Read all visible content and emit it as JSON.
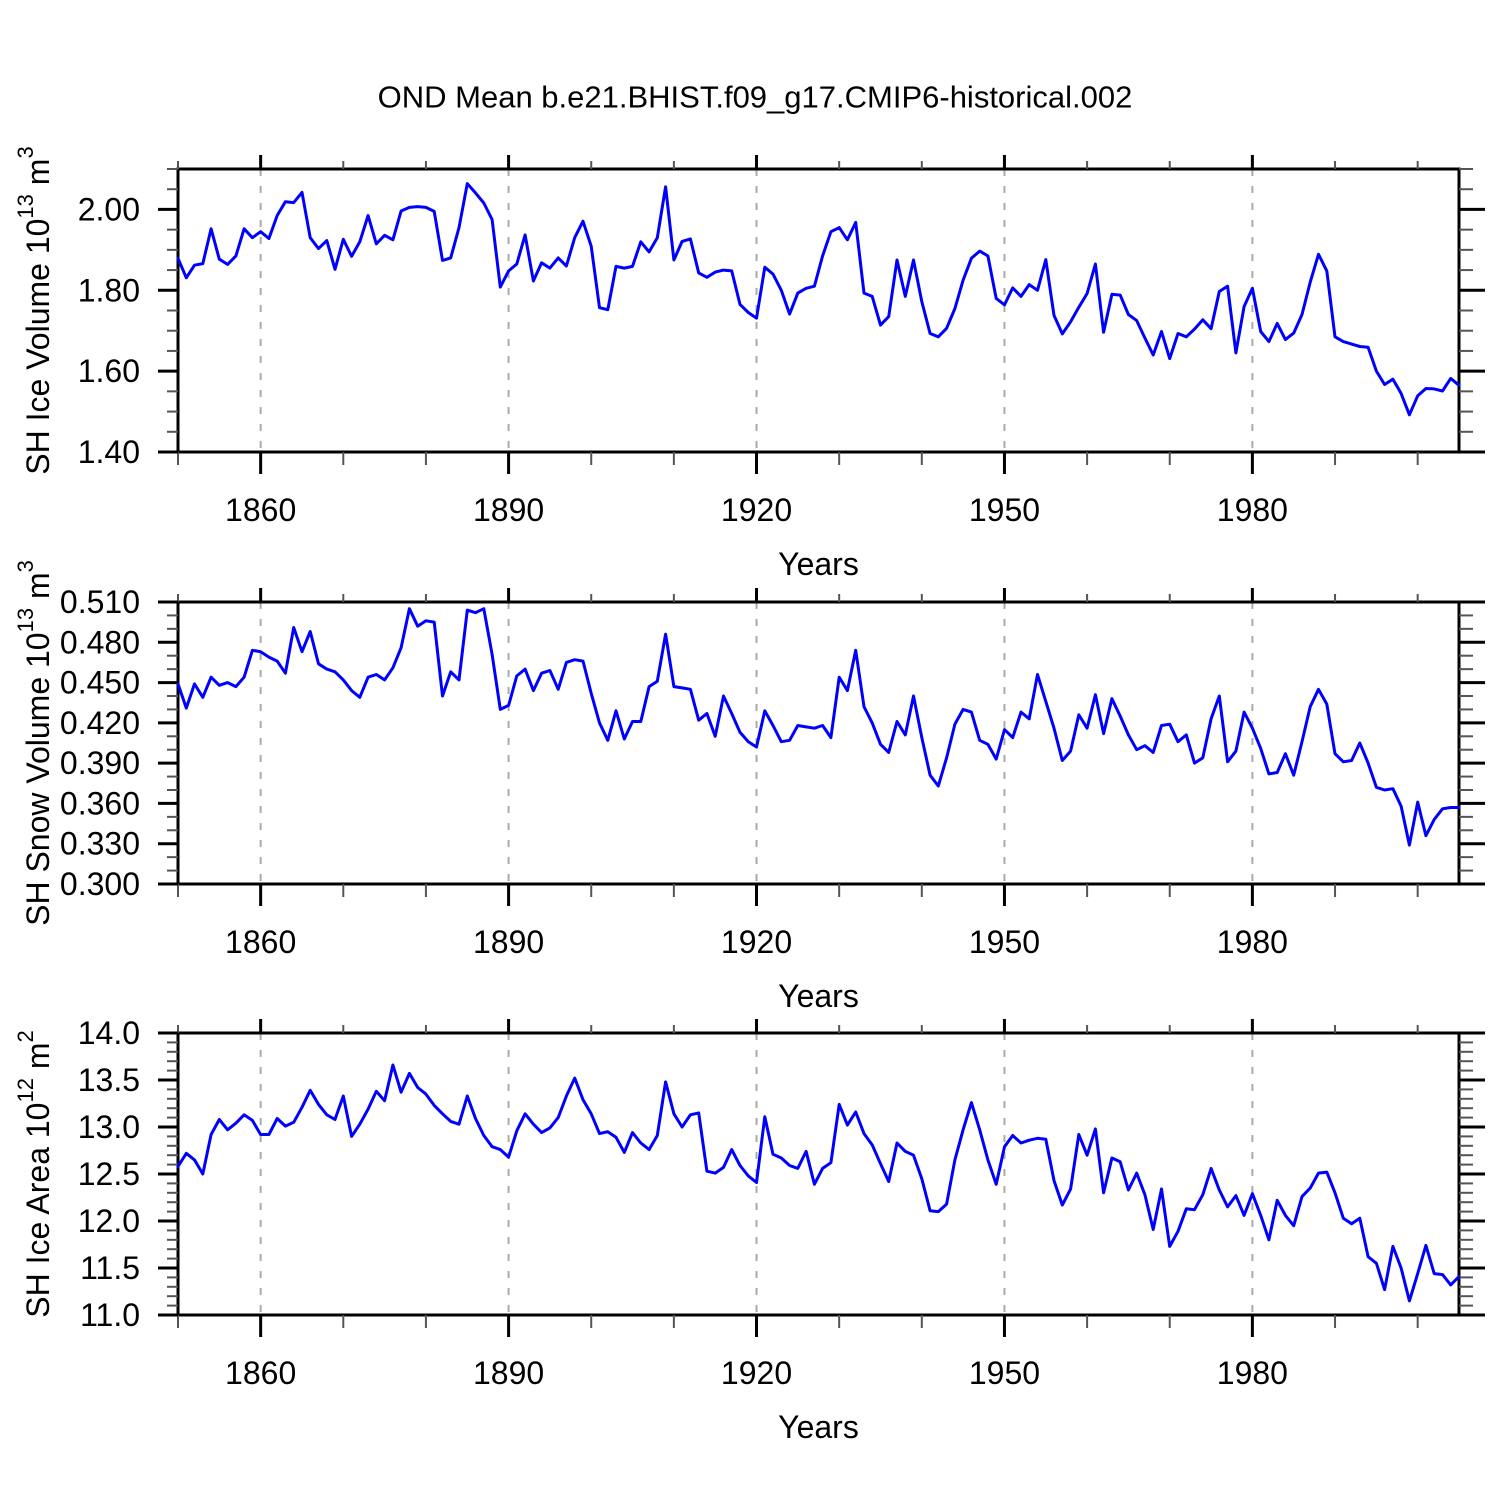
{
  "title": "OND Mean b.e21.BHIST.f09_g17.CMIP6-historical.002",
  "line_color": "#0000ff",
  "background_color": "#ffffff",
  "grid_color": "#aaaaaa",
  "axis_color": "#000000",
  "chart_data": [
    {
      "type": "line",
      "id": "sh-ice-volume",
      "x_label": "Years",
      "y_label_parts": [
        [
          "SH Ice Volume 10",
          false
        ],
        [
          "13",
          true
        ],
        [
          " m",
          false
        ],
        [
          "3",
          true
        ]
      ],
      "x_range": [
        1850,
        2005
      ],
      "x_major_ticks": [
        1860,
        1890,
        1920,
        1950,
        1980
      ],
      "x_minor_step": 10,
      "y_range": [
        1.4,
        2.1
      ],
      "y_major_ticks": [
        {
          "v": 2.0,
          "label": "2.00"
        },
        {
          "v": 1.8,
          "label": "1.80"
        },
        {
          "v": 1.6,
          "label": "1.60"
        },
        {
          "v": 1.4,
          "label": "1.40"
        }
      ],
      "y_minor_step": 0.05,
      "grid": "vertical-dashed",
      "x_start": 1850,
      "x_step": 1,
      "values": [
        1.879,
        1.831,
        1.862,
        1.866,
        1.952,
        1.877,
        1.864,
        1.885,
        1.952,
        1.93,
        1.945,
        1.928,
        1.985,
        2.019,
        2.017,
        2.042,
        1.93,
        1.903,
        1.923,
        1.852,
        1.926,
        1.884,
        1.92,
        1.985,
        1.915,
        1.936,
        1.925,
        1.996,
        2.005,
        2.007,
        2.005,
        1.995,
        1.874,
        1.88,
        1.955,
        2.064,
        2.041,
        2.016,
        1.975,
        1.808,
        1.848,
        1.865,
        1.937,
        1.823,
        1.868,
        1.855,
        1.88,
        1.86,
        1.93,
        1.971,
        1.909,
        1.757,
        1.752,
        1.859,
        1.855,
        1.859,
        1.92,
        1.895,
        1.93,
        2.056,
        1.875,
        1.921,
        1.927,
        1.843,
        1.832,
        1.845,
        1.85,
        1.848,
        1.765,
        1.745,
        1.731,
        1.857,
        1.84,
        1.8,
        1.741,
        1.793,
        1.805,
        1.81,
        1.885,
        1.945,
        1.955,
        1.925,
        1.968,
        1.793,
        1.785,
        1.714,
        1.735,
        1.875,
        1.785,
        1.875,
        1.772,
        1.693,
        1.685,
        1.706,
        1.755,
        1.825,
        1.879,
        1.897,
        1.885,
        1.78,
        1.764,
        1.806,
        1.785,
        1.814,
        1.8,
        1.876,
        1.738,
        1.692,
        1.722,
        1.758,
        1.792,
        1.865,
        1.696,
        1.79,
        1.788,
        1.74,
        1.725,
        1.682,
        1.64,
        1.698,
        1.631,
        1.693,
        1.685,
        1.704,
        1.727,
        1.705,
        1.797,
        1.81,
        1.645,
        1.76,
        1.805,
        1.698,
        1.673,
        1.718,
        1.678,
        1.694,
        1.74,
        1.82,
        1.889,
        1.848,
        1.685,
        1.673,
        1.667,
        1.661,
        1.659,
        1.6,
        1.567,
        1.58,
        1.545,
        1.492,
        1.539,
        1.557,
        1.556,
        1.551,
        1.582,
        1.565
      ]
    },
    {
      "type": "line",
      "id": "sh-snow-volume",
      "x_label": "Years",
      "y_label_parts": [
        [
          "SH Snow Volume 10",
          false
        ],
        [
          "13",
          true
        ],
        [
          " m",
          false
        ],
        [
          "3",
          true
        ]
      ],
      "x_range": [
        1850,
        2005
      ],
      "x_major_ticks": [
        1860,
        1890,
        1920,
        1950,
        1980
      ],
      "x_minor_step": 10,
      "y_range": [
        0.3,
        0.51
      ],
      "y_major_ticks": [
        {
          "v": 0.51,
          "label": "0.510"
        },
        {
          "v": 0.48,
          "label": "0.480"
        },
        {
          "v": 0.45,
          "label": "0.450"
        },
        {
          "v": 0.42,
          "label": "0.420"
        },
        {
          "v": 0.39,
          "label": "0.390"
        },
        {
          "v": 0.36,
          "label": "0.360"
        },
        {
          "v": 0.33,
          "label": "0.330"
        },
        {
          "v": 0.3,
          "label": "0.300"
        }
      ],
      "y_minor_step": 0.01,
      "grid": "vertical-dashed",
      "x_start": 1850,
      "x_step": 1,
      "values": [
        0.449,
        0.431,
        0.449,
        0.439,
        0.454,
        0.448,
        0.45,
        0.447,
        0.454,
        0.474,
        0.473,
        0.469,
        0.466,
        0.457,
        0.491,
        0.473,
        0.488,
        0.464,
        0.46,
        0.458,
        0.452,
        0.444,
        0.439,
        0.454,
        0.456,
        0.452,
        0.461,
        0.476,
        0.505,
        0.492,
        0.496,
        0.495,
        0.44,
        0.458,
        0.452,
        0.504,
        0.502,
        0.505,
        0.471,
        0.43,
        0.433,
        0.455,
        0.46,
        0.444,
        0.457,
        0.459,
        0.445,
        0.465,
        0.467,
        0.466,
        0.442,
        0.42,
        0.407,
        0.429,
        0.408,
        0.421,
        0.421,
        0.447,
        0.451,
        0.486,
        0.447,
        0.446,
        0.445,
        0.422,
        0.427,
        0.41,
        0.44,
        0.427,
        0.413,
        0.406,
        0.402,
        0.429,
        0.418,
        0.406,
        0.407,
        0.418,
        0.417,
        0.416,
        0.418,
        0.409,
        0.454,
        0.444,
        0.474,
        0.432,
        0.42,
        0.404,
        0.398,
        0.421,
        0.411,
        0.44,
        0.409,
        0.381,
        0.373,
        0.394,
        0.419,
        0.43,
        0.428,
        0.407,
        0.404,
        0.393,
        0.415,
        0.409,
        0.428,
        0.423,
        0.456,
        0.436,
        0.416,
        0.392,
        0.399,
        0.426,
        0.416,
        0.441,
        0.412,
        0.438,
        0.425,
        0.411,
        0.4,
        0.403,
        0.398,
        0.418,
        0.419,
        0.406,
        0.411,
        0.39,
        0.394,
        0.423,
        0.44,
        0.391,
        0.399,
        0.428,
        0.416,
        0.401,
        0.382,
        0.383,
        0.397,
        0.381,
        0.406,
        0.432,
        0.445,
        0.434,
        0.397,
        0.391,
        0.392,
        0.405,
        0.39,
        0.372,
        0.37,
        0.371,
        0.358,
        0.329,
        0.361,
        0.336,
        0.348,
        0.356,
        0.357,
        0.357
      ]
    },
    {
      "type": "line",
      "id": "sh-ice-area",
      "x_label": "Years",
      "y_label_parts": [
        [
          "SH Ice Area 10",
          false
        ],
        [
          "12",
          true
        ],
        [
          " m",
          false
        ],
        [
          "2",
          true
        ]
      ],
      "x_range": [
        1850,
        2005
      ],
      "x_major_ticks": [
        1860,
        1890,
        1920,
        1950,
        1980
      ],
      "x_minor_step": 10,
      "y_range": [
        11.0,
        14.0
      ],
      "y_major_ticks": [
        {
          "v": 14.0,
          "label": "14.0"
        },
        {
          "v": 13.5,
          "label": "13.5"
        },
        {
          "v": 13.0,
          "label": "13.0"
        },
        {
          "v": 12.5,
          "label": "12.5"
        },
        {
          "v": 12.0,
          "label": "12.0"
        },
        {
          "v": 11.5,
          "label": "11.5"
        },
        {
          "v": 11.0,
          "label": "11.0"
        }
      ],
      "y_minor_step": 0.1,
      "grid": "vertical-dashed",
      "x_start": 1850,
      "x_step": 1,
      "values": [
        12.58,
        12.72,
        12.65,
        12.5,
        12.92,
        13.08,
        12.97,
        13.04,
        13.13,
        13.07,
        12.92,
        12.92,
        13.09,
        13.01,
        13.05,
        13.21,
        13.39,
        13.24,
        13.13,
        13.08,
        13.33,
        12.9,
        13.03,
        13.19,
        13.38,
        13.28,
        13.66,
        13.37,
        13.57,
        13.42,
        13.35,
        13.23,
        13.14,
        13.06,
        13.03,
        13.33,
        13.09,
        12.91,
        12.79,
        12.76,
        12.68,
        12.96,
        13.14,
        13.03,
        12.94,
        12.99,
        13.1,
        13.33,
        13.52,
        13.29,
        13.14,
        12.93,
        12.95,
        12.89,
        12.73,
        12.94,
        12.83,
        12.76,
        12.91,
        13.48,
        13.14,
        13.0,
        13.13,
        13.15,
        12.53,
        12.51,
        12.57,
        12.76,
        12.59,
        12.48,
        12.41,
        13.11,
        12.71,
        12.67,
        12.59,
        12.56,
        12.74,
        12.39,
        12.56,
        12.62,
        13.24,
        13.02,
        13.16,
        12.93,
        12.81,
        12.61,
        12.42,
        12.83,
        12.74,
        12.7,
        12.45,
        12.11,
        12.1,
        12.18,
        12.65,
        12.97,
        13.26,
        12.97,
        12.65,
        12.39,
        12.79,
        12.91,
        12.83,
        12.86,
        12.88,
        12.87,
        12.43,
        12.17,
        12.34,
        12.92,
        12.7,
        12.98,
        12.3,
        12.67,
        12.63,
        12.33,
        12.51,
        12.28,
        11.91,
        12.34,
        11.73,
        11.89,
        12.13,
        12.12,
        12.28,
        12.56,
        12.33,
        12.15,
        12.27,
        12.06,
        12.29,
        12.06,
        11.8,
        12.22,
        12.06,
        11.95,
        12.26,
        12.35,
        12.51,
        12.52,
        12.3,
        12.03,
        11.97,
        12.03,
        11.62,
        11.55,
        11.27,
        11.73,
        11.5,
        11.15,
        11.44,
        11.74,
        11.44,
        11.43,
        11.32,
        11.41
      ]
    }
  ]
}
